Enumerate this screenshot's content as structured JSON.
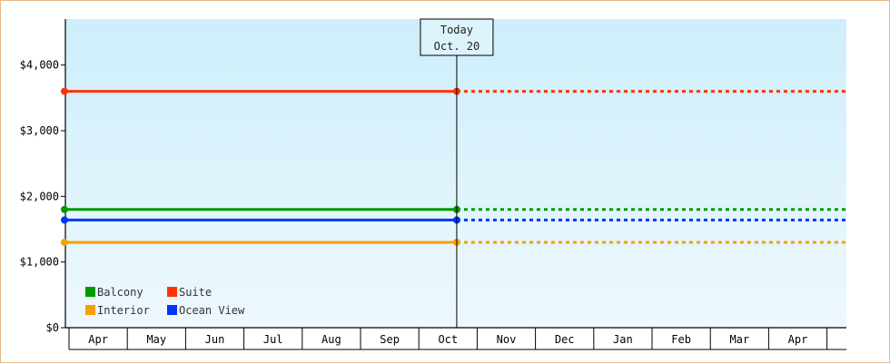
{
  "chart_data": {
    "type": "line",
    "title": "",
    "xlabel": "",
    "ylabel": "",
    "ylim": [
      0,
      4700
    ],
    "y_ticks": [
      {
        "value": 0,
        "label": "$0"
      },
      {
        "value": 1000,
        "label": "$1,000"
      },
      {
        "value": 2000,
        "label": "$2,000"
      },
      {
        "value": 3000,
        "label": "$3,000"
      },
      {
        "value": 4000,
        "label": "$4,000"
      }
    ],
    "categories": [
      "Apr",
      "May",
      "Jun",
      "Jul",
      "Aug",
      "Sep",
      "Oct",
      "Nov",
      "Dec",
      "Jan",
      "Feb",
      "Mar",
      "Apr"
    ],
    "today_marker": {
      "line1": "Today",
      "line2": "Oct. 20",
      "month_index": 6.65
    },
    "series": [
      {
        "name": "Suite",
        "color": "#ff3300",
        "value": 3600
      },
      {
        "name": "Balcony",
        "color": "#009900",
        "value": 1800
      },
      {
        "name": "Ocean View",
        "color": "#0033ff",
        "value": 1640
      },
      {
        "name": "Interior",
        "color": "#f5a200",
        "value": 1300
      }
    ],
    "solid_until": "today",
    "dotted_after": "today",
    "grid": false,
    "legend": {
      "placement": "bottom-left",
      "order": [
        "Balcony",
        "Suite",
        "Interior",
        "Ocean View"
      ]
    },
    "background_gradient": [
      "#cdeefb",
      "#eef8fd"
    ]
  }
}
